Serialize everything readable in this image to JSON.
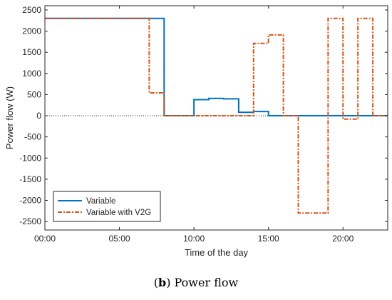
{
  "caption": {
    "tag": "b",
    "text": "Power flow"
  },
  "chart_data": {
    "type": "line",
    "step": true,
    "xlabel": "Time of the day",
    "ylabel": "Power flow (W)",
    "xlim": [
      0,
      23
    ],
    "ylim": [
      -2700,
      2600
    ],
    "xticks": [
      0,
      5,
      10,
      15,
      20
    ],
    "xtick_labels": [
      "00:00",
      "05:00",
      "10:00",
      "15:00",
      "20:00"
    ],
    "yticks": [
      -2500,
      -2000,
      -1500,
      -1000,
      -500,
      0,
      500,
      1000,
      1500,
      2000,
      2500
    ],
    "ytick_labels": [
      "-2500",
      "-2000",
      "-1500",
      "-1000",
      "-500",
      "0",
      "500",
      "1000",
      "1500",
      "2000",
      "2500"
    ],
    "zero_line": true,
    "grid": false,
    "legend_position": "bottom-left",
    "series": [
      {
        "name": "Variable",
        "color": "#0072BD",
        "style": "solid",
        "x": [
          0,
          8,
          10,
          11,
          12,
          13,
          14,
          15,
          23
        ],
        "values": [
          2300,
          0,
          380,
          410,
          400,
          80,
          100,
          0,
          0
        ]
      },
      {
        "name": "Variable with V2G",
        "color": "#D95319",
        "style": "dashdot",
        "x": [
          0,
          7,
          8,
          14,
          15,
          16,
          17,
          19,
          20,
          21,
          22,
          23
        ],
        "values": [
          2300,
          540,
          0,
          1710,
          1910,
          0,
          -2300,
          2300,
          -80,
          2300,
          0,
          0
        ]
      }
    ]
  }
}
